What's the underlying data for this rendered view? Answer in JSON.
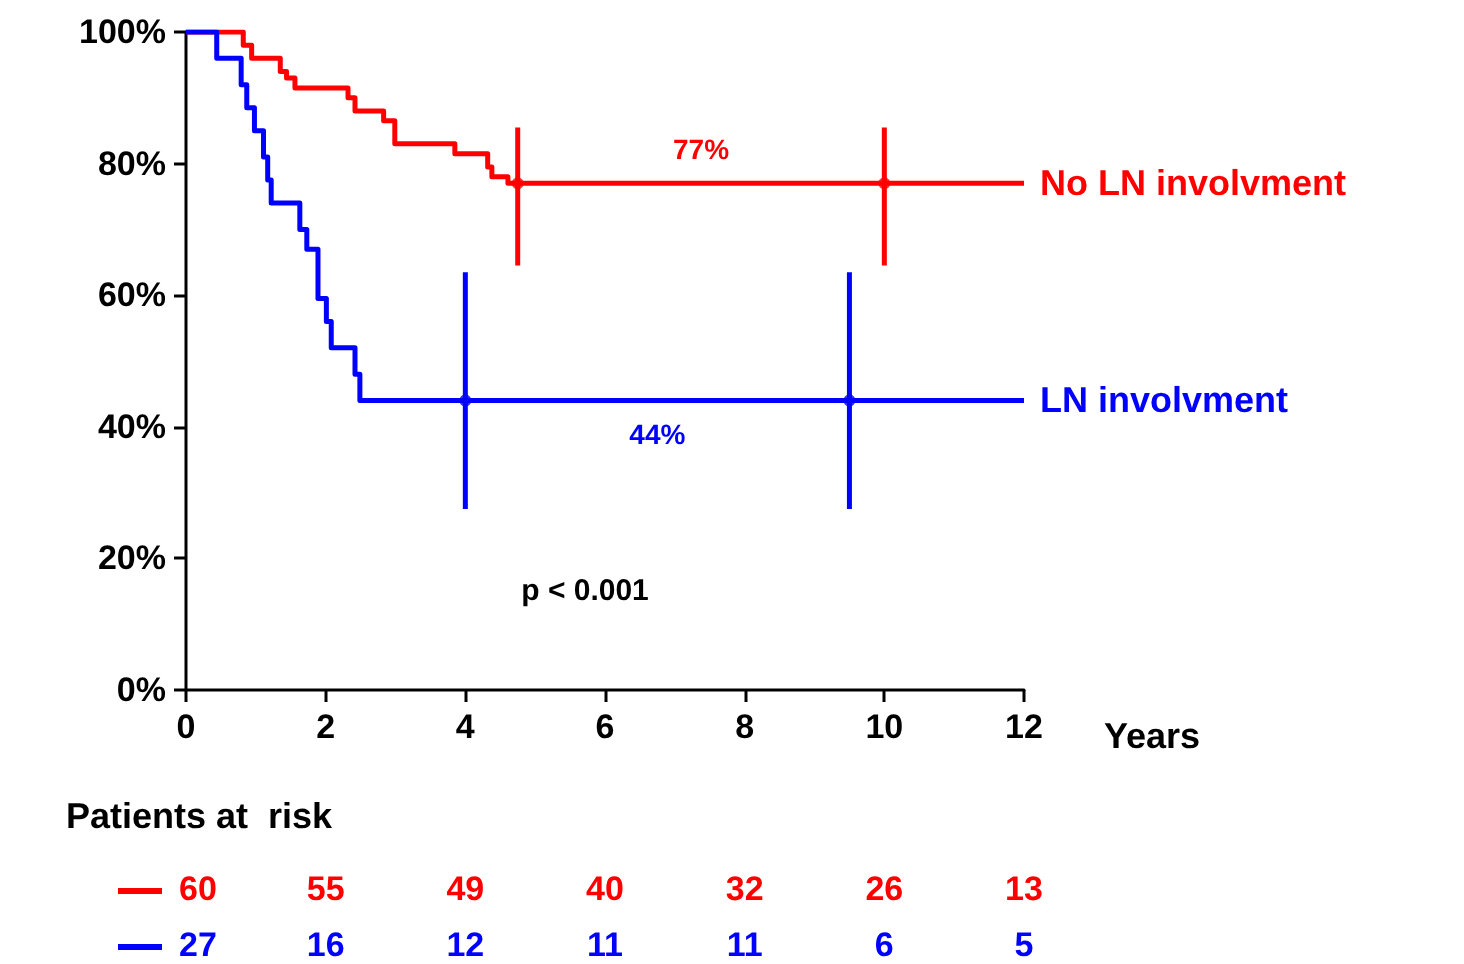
{
  "chart_data": {
    "type": "step",
    "xlabel": "Years",
    "xlim": [
      0,
      12
    ],
    "xticks": [
      0,
      2,
      4,
      6,
      8,
      10,
      12
    ],
    "ylim": [
      0,
      100
    ],
    "yticks": [
      {
        "value": 0,
        "label": "0%"
      },
      {
        "value": 20,
        "label": "20%"
      },
      {
        "value": 40,
        "label": "40%"
      },
      {
        "value": 60,
        "label": "60%"
      },
      {
        "value": 80,
        "label": "80%"
      },
      {
        "value": 100,
        "label": "100%"
      }
    ],
    "grid": false,
    "legend": false,
    "marker": "none",
    "line_style": "solid",
    "series": [
      {
        "name": "No LN involvment",
        "color": "#ff0000",
        "x": [
          0,
          0.82,
          0.94,
          1.35,
          1.44,
          1.56,
          2.32,
          2.42,
          2.83,
          2.99,
          3.85,
          4.32,
          4.38,
          4.61,
          12
        ],
        "values": [
          100,
          98,
          96,
          94,
          93,
          91.5,
          90,
          88,
          86.5,
          83,
          81.5,
          79.5,
          78,
          77,
          77
        ]
      },
      {
        "name": "LN involvment",
        "color": "#0000ff",
        "x": [
          0,
          0.44,
          0.79,
          0.87,
          0.98,
          1.11,
          1.17,
          1.22,
          1.63,
          1.73,
          1.89,
          2.01,
          2.08,
          2.42,
          2.49,
          12
        ],
        "values": [
          100,
          96,
          92,
          88.5,
          85,
          81,
          77.5,
          74,
          70,
          67,
          59.5,
          56,
          52,
          48,
          44,
          44
        ]
      },
      {
        "type": "scatter",
        "marker": "circle",
        "color": "#ff0000",
        "x": [
          4.75,
          10
        ],
        "values": [
          77,
          77
        ],
        "errors": [
          [
            64.5,
            85.5
          ],
          [
            64.5,
            85.5
          ]
        ]
      },
      {
        "type": "scatter",
        "marker": "circle",
        "color": "#0000ff",
        "x": [
          4,
          9.5
        ],
        "values": [
          44,
          44
        ],
        "errors": [
          [
            27.5,
            63.5
          ],
          [
            27.5,
            63.5
          ]
        ]
      }
    ],
    "annotations": [
      "77%",
      "44%",
      "p < 0.001",
      "Patients at  risk",
      "60",
      "55",
      "49",
      "40",
      "32",
      "26",
      "13",
      "27",
      "16",
      "12",
      "11",
      "11",
      "6",
      "5"
    ]
  }
}
